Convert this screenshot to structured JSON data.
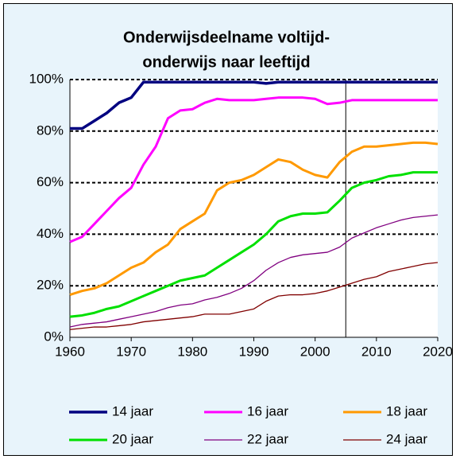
{
  "chart_data": {
    "type": "line",
    "title_lines": [
      "Onderwijsdeelname voltijd-",
      "onderwijs naar leeftijd"
    ],
    "x": [
      1960,
      1962,
      1964,
      1966,
      1968,
      1970,
      1972,
      1974,
      1976,
      1978,
      1980,
      1982,
      1984,
      1986,
      1988,
      1990,
      1992,
      1994,
      1996,
      1998,
      2000,
      2002,
      2004,
      2006,
      2008,
      2010,
      2012,
      2014,
      2016,
      2018,
      2020
    ],
    "series": [
      {
        "name": "14 jaar",
        "color": "#000080",
        "width": 3.5,
        "values": [
          81,
          81,
          84,
          87,
          91,
          93,
          99,
          99,
          99,
          99,
          99,
          99,
          99,
          99,
          99,
          99,
          98.5,
          99,
          99,
          99,
          99,
          99,
          99,
          99,
          99,
          99,
          99,
          99,
          99,
          99,
          99
        ]
      },
      {
        "name": "16 jaar",
        "color": "#ff00ff",
        "width": 3,
        "values": [
          37,
          39,
          44,
          49,
          54,
          58,
          67,
          74,
          85,
          88,
          88.5,
          91,
          92.5,
          92,
          92,
          92,
          92.5,
          93,
          93,
          93,
          92.5,
          90.5,
          91,
          92,
          92,
          92,
          92,
          92,
          92,
          92,
          92
        ]
      },
      {
        "name": "18 jaar",
        "color": "#ff9900",
        "width": 3,
        "values": [
          16.5,
          18,
          19,
          21,
          24,
          27,
          29,
          33,
          36,
          42,
          45,
          48,
          57,
          60,
          61,
          63,
          66,
          69,
          68,
          65,
          63,
          62,
          68,
          72,
          74,
          74,
          74.5,
          75,
          75.5,
          75.5,
          75
        ]
      },
      {
        "name": "20 jaar",
        "color": "#00e000",
        "width": 3,
        "values": [
          8,
          8.5,
          9.5,
          11,
          12,
          14,
          16,
          18,
          20,
          22,
          23,
          24,
          27,
          30,
          33,
          36,
          40,
          45,
          47,
          48,
          48,
          48.5,
          53,
          58,
          60,
          61,
          62.5,
          63,
          64,
          64,
          64
        ]
      },
      {
        "name": "22 jaar",
        "color": "#800080",
        "width": 1.3,
        "values": [
          4,
          5,
          5.5,
          6,
          7,
          8,
          9,
          10,
          11.5,
          12.5,
          13,
          14.5,
          15.5,
          17,
          19,
          22,
          26,
          29,
          31,
          32,
          32.5,
          33,
          35,
          38.5,
          40.5,
          42.5,
          44,
          45.5,
          46.5,
          47,
          47.5
        ]
      },
      {
        "name": "24 jaar",
        "color": "#800000",
        "width": 1.3,
        "values": [
          3,
          3.5,
          4,
          4,
          4.5,
          5,
          6,
          6.5,
          7,
          7.5,
          8,
          9,
          9,
          9,
          10,
          11,
          14,
          16,
          16.5,
          16.5,
          17,
          18,
          19.5,
          21,
          22.5,
          23.5,
          25.5,
          26.5,
          27.5,
          28.5,
          29
        ]
      }
    ],
    "xlim": [
      1960,
      2020
    ],
    "xticks": [
      1960,
      1970,
      1980,
      1990,
      2000,
      2010,
      2020
    ],
    "ylim": [
      0,
      100
    ],
    "yticks": [
      {
        "value": 0,
        "label": "0%"
      },
      {
        "value": 20,
        "label": "20%"
      },
      {
        "value": 40,
        "label": "40%"
      },
      {
        "value": 60,
        "label": "60%"
      },
      {
        "value": 80,
        "label": "80%"
      },
      {
        "value": 100,
        "label": "100%"
      }
    ],
    "grid": true,
    "vline": 2005,
    "legend": "bottom"
  }
}
